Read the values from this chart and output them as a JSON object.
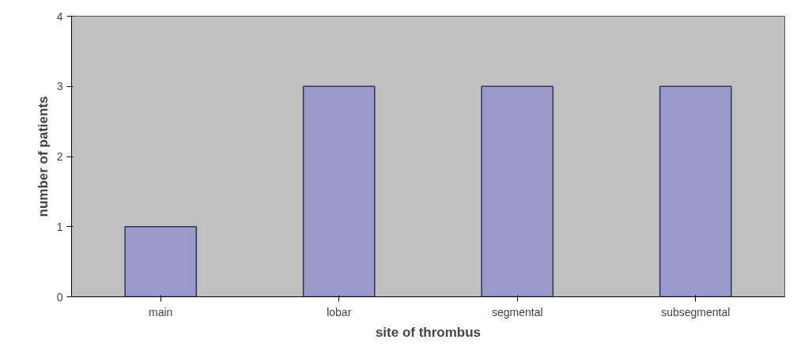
{
  "chart_data": {
    "type": "bar",
    "xlabel": "site of thrombus",
    "ylabel": "number of patients",
    "categories": [
      "main",
      "lobar",
      "segmental",
      "subsegmental"
    ],
    "values": [
      1,
      3,
      3,
      3
    ],
    "color": "#9999cc",
    "ylim": [
      0,
      4
    ],
    "yticks": [
      0,
      1,
      2,
      3,
      4
    ],
    "grid": false
  }
}
